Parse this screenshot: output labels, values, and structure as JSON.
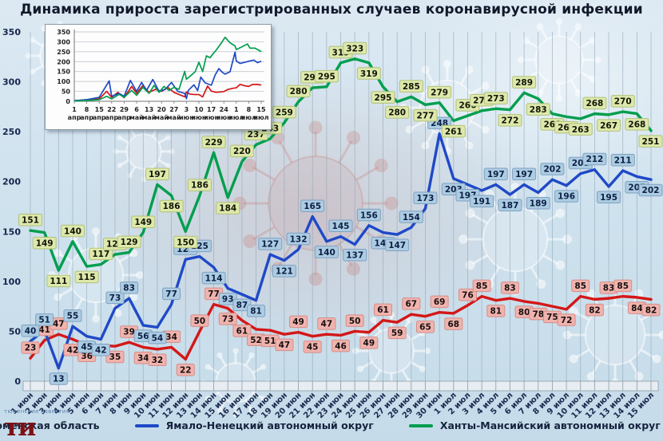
{
  "title": "Динамика прироста зарегистрированных случаев коронавирусной инфекции",
  "footer": {
    "watermark": "тюменские известия",
    "logo_text": "ти"
  },
  "legend": [
    {
      "label": "Тюменская область",
      "color": "#d41717"
    },
    {
      "label": "Ямало-Ненецкий автономный округ",
      "color": "#1f49c7"
    },
    {
      "label": "Ханты-Мансийский автономный округ — Югра",
      "color": "#009e4e"
    }
  ],
  "chart_data": [
    {
      "id": "main",
      "type": "line",
      "title": "Динамика прироста зарегистрированных случаев коронавирусной инфекции",
      "xlabel": "",
      "ylabel": "",
      "ylim": [
        0,
        350
      ],
      "y_ticks": [
        0,
        50,
        100,
        150,
        200,
        250,
        300,
        350
      ],
      "grid": "vertical",
      "legend_position": "bottom",
      "point_labels": true,
      "categories": [
        "1 июн",
        "2 июн",
        "3 июн",
        "4 июн",
        "5 июн",
        "6 июн",
        "7 июн",
        "8 июн",
        "9 июн",
        "10 июн",
        "11 июн",
        "12 июн",
        "13 июн",
        "14 июн",
        "15 июн",
        "16 июн",
        "17 июн",
        "18 июн",
        "19 июн",
        "20 июн",
        "21 июн",
        "22 июн",
        "23 июн",
        "24 июн",
        "25 июн",
        "26 июн",
        "27 июн",
        "28 июн",
        "29 июн",
        "30 июн",
        "1 июл",
        "2 июл",
        "3 июл",
        "4 июл",
        "5 июл",
        "6 июл",
        "7 июл",
        "8 июл",
        "9 июл",
        "10 июл",
        "11 июл",
        "12 июл",
        "13 июл",
        "14 июл",
        "15 июл"
      ],
      "series": [
        {
          "name": "Тюменская область",
          "color": "#d41717",
          "label_bg": "#f0b3ae",
          "label_border": "#d68d86",
          "label_text": "#181010",
          "label_skip": [
            5
          ],
          "values": [
            23,
            41,
            47,
            42,
            36,
            36,
            35,
            39,
            34,
            32,
            34,
            22,
            50,
            77,
            73,
            61,
            52,
            51,
            47,
            49,
            45,
            47,
            46,
            50,
            49,
            61,
            59,
            67,
            65,
            69,
            68,
            76,
            85,
            81,
            83,
            80,
            78,
            75,
            72,
            85,
            82,
            83,
            85,
            84,
            82
          ]
        },
        {
          "name": "Ямало-Ненецкий автономный округ",
          "color": "#1f49c7",
          "label_bg": "#accce2",
          "label_border": "#7fa0c2",
          "label_text": "#0d1f45",
          "label_skip": [],
          "values": [
            40,
            51,
            13,
            55,
            45,
            42,
            73,
            83,
            56,
            54,
            77,
            122,
            125,
            114,
            93,
            87,
            81,
            127,
            121,
            132,
            165,
            140,
            145,
            137,
            156,
            149,
            147,
            154,
            173,
            248,
            203,
            197,
            191,
            197,
            187,
            197,
            189,
            202,
            196,
            208,
            212,
            195,
            211,
            205,
            202
          ]
        },
        {
          "name": "Ханты-Мансийский автономный округ — Югра",
          "color": "#009e4e",
          "label_bg": "#dde8ab",
          "label_border": "#b2c178",
          "label_text": "#131508",
          "label_skip": [],
          "values": [
            151,
            149,
            111,
            140,
            115,
            117,
            127,
            129,
            149,
            197,
            186,
            150,
            186,
            229,
            184,
            220,
            237,
            243,
            259,
            280,
            294,
            295,
            319,
            323,
            319,
            295,
            280,
            285,
            277,
            279,
            261,
            266,
            271,
            273,
            272,
            289,
            283,
            268,
            265,
            263,
            268,
            267,
            270,
            268,
            251
          ]
        }
      ]
    },
    {
      "id": "inset",
      "type": "line",
      "title": "",
      "ylim": [
        0,
        350
      ],
      "y_ticks": [
        0,
        50,
        100,
        150,
        200,
        250,
        300,
        350
      ],
      "grid": "horizontal",
      "point_labels": false,
      "categories": [
        "1 апр",
        "8 апр",
        "15 апр",
        "22 апр",
        "29 апр",
        "6 май",
        "13 май",
        "20 май",
        "27 май",
        "3 июн",
        "10 июн",
        "17 июн",
        "24 июн",
        "1 июл",
        "8 июл",
        "15 июл"
      ],
      "series": [
        {
          "name": "Тюменская область",
          "color": "#d41717",
          "points": [
            [
              0,
              2
            ],
            [
              1,
              8
            ],
            [
              2,
              12
            ],
            [
              2.6,
              50
            ],
            [
              3,
              20
            ],
            [
              3.5,
              45
            ],
            [
              4,
              18
            ],
            [
              4.6,
              75
            ],
            [
              5,
              40
            ],
            [
              5.5,
              80
            ],
            [
              6,
              45
            ],
            [
              6.5,
              60
            ],
            [
              7,
              50
            ],
            [
              7.5,
              70
            ],
            [
              8,
              45
            ],
            [
              8.57,
              30
            ],
            [
              8.86,
              23
            ],
            [
              9,
              47
            ],
            [
              9.3,
              36
            ],
            [
              9.7,
              34
            ],
            [
              10,
              34
            ],
            [
              10.3,
              22
            ],
            [
              10.7,
              77
            ],
            [
              11,
              51
            ],
            [
              11.4,
              45
            ],
            [
              12,
              49
            ],
            [
              12.3,
              59
            ],
            [
              12.7,
              65
            ],
            [
              13,
              68
            ],
            [
              13.3,
              85
            ],
            [
              13.7,
              78
            ],
            [
              14,
              75
            ],
            [
              14.3,
              85
            ],
            [
              14.7,
              85
            ],
            [
              15,
              82
            ]
          ]
        },
        {
          "name": "Ямало-Ненецкий автономный округ",
          "color": "#1f49c7",
          "points": [
            [
              0,
              3
            ],
            [
              1,
              8
            ],
            [
              2,
              20
            ],
            [
              2.8,
              103
            ],
            [
              3,
              25
            ],
            [
              3.6,
              40
            ],
            [
              4,
              25
            ],
            [
              4.5,
              105
            ],
            [
              5,
              50
            ],
            [
              5.4,
              95
            ],
            [
              5.8,
              55
            ],
            [
              6.3,
              110
            ],
            [
              6.8,
              50
            ],
            [
              7.3,
              60
            ],
            [
              7.8,
              95
            ],
            [
              8.3,
              50
            ],
            [
              8.86,
              40
            ],
            [
              9,
              13
            ],
            [
              9.15,
              55
            ],
            [
              9.6,
              83
            ],
            [
              9.9,
              54
            ],
            [
              10.15,
              122
            ],
            [
              10.5,
              93
            ],
            [
              11,
              81
            ],
            [
              11.3,
              132
            ],
            [
              11.6,
              165
            ],
            [
              11.9,
              145
            ],
            [
              12.1,
              137
            ],
            [
              12.5,
              149
            ],
            [
              12.9,
              248
            ],
            [
              13,
              203
            ],
            [
              13.3,
              191
            ],
            [
              13.7,
              197
            ],
            [
              14,
              202
            ],
            [
              14.4,
              208
            ],
            [
              14.7,
              195
            ],
            [
              15,
              202
            ]
          ]
        },
        {
          "name": "Ханты-Мансийский автономный округ — Югра",
          "color": "#009e4e",
          "points": [
            [
              0,
              1
            ],
            [
              1,
              4
            ],
            [
              2,
              8
            ],
            [
              2.6,
              25
            ],
            [
              3,
              12
            ],
            [
              3.6,
              35
            ],
            [
              4,
              20
            ],
            [
              4.6,
              55
            ],
            [
              5,
              30
            ],
            [
              5.5,
              70
            ],
            [
              6,
              40
            ],
            [
              6.4,
              80
            ],
            [
              6.8,
              45
            ],
            [
              7.2,
              75
            ],
            [
              7.6,
              55
            ],
            [
              8,
              70
            ],
            [
              8.4,
              60
            ],
            [
              8.86,
              151
            ],
            [
              9,
              111
            ],
            [
              9.3,
              127
            ],
            [
              9.7,
              149
            ],
            [
              10,
              197
            ],
            [
              10.3,
              150
            ],
            [
              10.6,
              229
            ],
            [
              10.9,
              220
            ],
            [
              11.1,
              237
            ],
            [
              11.4,
              259
            ],
            [
              11.8,
              294
            ],
            [
              12.1,
              323
            ],
            [
              12.5,
              295
            ],
            [
              12.9,
              279
            ],
            [
              13,
              261
            ],
            [
              13.4,
              273
            ],
            [
              13.9,
              289
            ],
            [
              14.1,
              268
            ],
            [
              14.5,
              268
            ],
            [
              15,
              251
            ]
          ]
        }
      ]
    }
  ]
}
